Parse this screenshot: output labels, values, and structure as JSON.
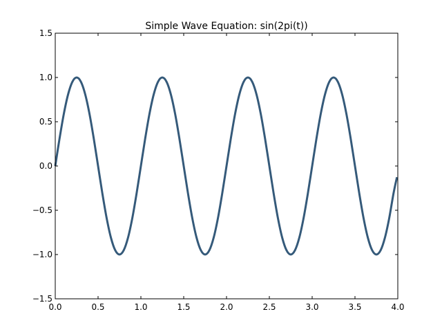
{
  "chart_data": {
    "type": "line",
    "title": "Simple Wave Equation: sin(2pi(t))",
    "xlabel": "",
    "ylabel": "",
    "xlim": [
      0.0,
      4.0
    ],
    "ylim": [
      -1.5,
      1.5
    ],
    "x_ticks": [
      0.0,
      0.5,
      1.0,
      1.5,
      2.0,
      2.5,
      3.0,
      3.5,
      4.0
    ],
    "x_tick_labels": [
      "0.0",
      "0.5",
      "1.0",
      "1.5",
      "2.0",
      "2.5",
      "3.0",
      "3.5",
      "4.0"
    ],
    "y_ticks": [
      -1.5,
      -1.0,
      -0.5,
      0.0,
      0.5,
      1.0,
      1.5
    ],
    "y_tick_labels": [
      "−1.5",
      "−1.0",
      "−0.5",
      "0.0",
      "0.5",
      "1.0",
      "1.5"
    ],
    "grid": false,
    "legend": "none",
    "series": [
      {
        "color": "#355a7a",
        "x": [
          0.0,
          0.05,
          0.1,
          0.15,
          0.2,
          0.25,
          0.3,
          0.35,
          0.4,
          0.45,
          0.5,
          0.55,
          0.6,
          0.65,
          0.7,
          0.75,
          0.8,
          0.85,
          0.9,
          0.95,
          1.0,
          1.05,
          1.1,
          1.15,
          1.2,
          1.25,
          1.3,
          1.35,
          1.4,
          1.45,
          1.5,
          1.55,
          1.6,
          1.65,
          1.7,
          1.75,
          1.8,
          1.85,
          1.9,
          1.95,
          2.0,
          2.05,
          2.1,
          2.15,
          2.2,
          2.25,
          2.3,
          2.35,
          2.4,
          2.45,
          2.5,
          2.55,
          2.6,
          2.65,
          2.7,
          2.75,
          2.8,
          2.85,
          2.9,
          2.95,
          3.0,
          3.05,
          3.1,
          3.15,
          3.2,
          3.25,
          3.3,
          3.35,
          3.4,
          3.45,
          3.5,
          3.55,
          3.6,
          3.65,
          3.7,
          3.75,
          3.8,
          3.85,
          3.9,
          3.95,
          3.99
        ],
        "y": [
          0.0,
          0.309,
          0.588,
          0.809,
          0.951,
          1.0,
          0.951,
          0.809,
          0.588,
          0.309,
          0.0,
          -0.309,
          -0.588,
          -0.809,
          -0.951,
          -1.0,
          -0.951,
          -0.809,
          -0.588,
          -0.309,
          0.0,
          0.309,
          0.588,
          0.809,
          0.951,
          1.0,
          0.951,
          0.809,
          0.588,
          0.309,
          0.0,
          -0.309,
          -0.588,
          -0.809,
          -0.951,
          -1.0,
          -0.951,
          -0.809,
          -0.588,
          -0.309,
          0.0,
          0.309,
          0.588,
          0.809,
          0.951,
          1.0,
          0.951,
          0.809,
          0.588,
          0.309,
          0.0,
          -0.309,
          -0.588,
          -0.809,
          -0.951,
          -1.0,
          -0.951,
          -0.809,
          -0.588,
          -0.309,
          0.0,
          0.309,
          0.588,
          0.809,
          0.951,
          1.0,
          0.951,
          0.809,
          0.588,
          0.309,
          0.0,
          -0.309,
          -0.588,
          -0.809,
          -0.951,
          -1.0,
          -0.951,
          -0.809,
          -0.588,
          -0.309,
          -0.126
        ]
      }
    ]
  }
}
